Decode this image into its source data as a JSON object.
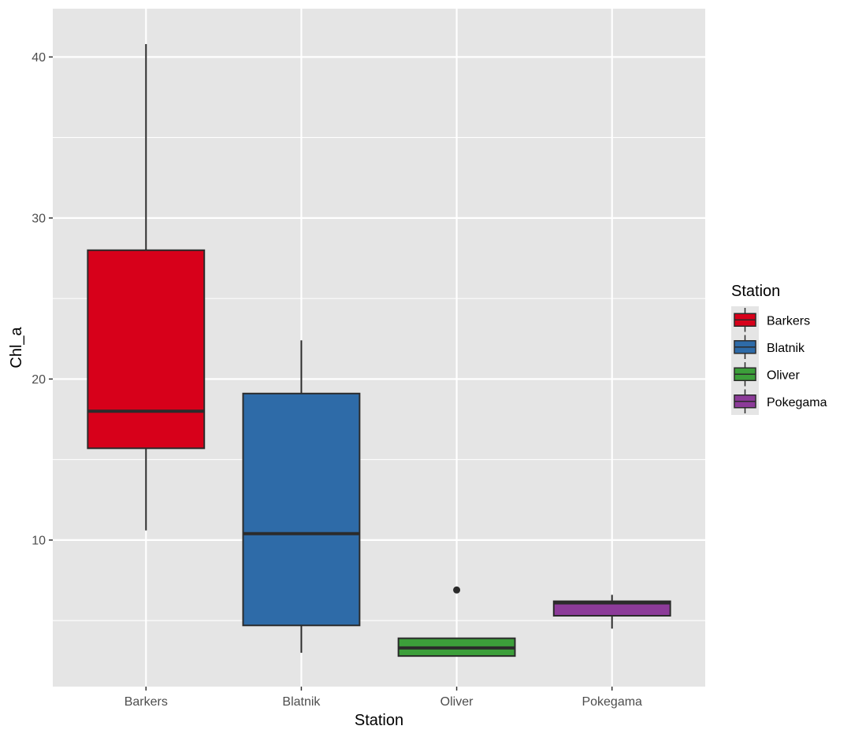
{
  "chart_data": {
    "type": "box",
    "xlabel": "Station",
    "ylabel": "Chl_a",
    "categories": [
      "Barkers",
      "Blatnik",
      "Oliver",
      "Pokegama"
    ],
    "ylim": [
      0.9,
      43.0
    ],
    "y_ticks": [
      10,
      20,
      30,
      40
    ],
    "y_minor_ticks": [
      15,
      25,
      35,
      5
    ],
    "grid": true,
    "legend": {
      "title": "Station",
      "position": "right",
      "entries": [
        "Barkers",
        "Blatnik",
        "Oliver",
        "Pokegama"
      ]
    },
    "colors": {
      "Barkers": "#d7001a",
      "Blatnik": "#2e6ba8",
      "Oliver": "#3c9f3a",
      "Pokegama": "#8c3b99",
      "panel_background": "#e5e5e5",
      "grid": "#ffffff",
      "box_outline": "#2b2b2b"
    },
    "boxes": [
      {
        "category": "Barkers",
        "whisker_low": 10.6,
        "q1": 15.7,
        "median": 18.0,
        "q3": 28.0,
        "whisker_high": 40.8,
        "outliers": []
      },
      {
        "category": "Blatnik",
        "whisker_low": 3.0,
        "q1": 4.7,
        "median": 10.4,
        "q3": 19.1,
        "whisker_high": 22.4,
        "outliers": []
      },
      {
        "category": "Oliver",
        "whisker_low": 2.8,
        "q1": 2.8,
        "median": 3.3,
        "q3": 3.9,
        "whisker_high": 3.9,
        "outliers": [
          6.9
        ]
      },
      {
        "category": "Pokegama",
        "whisker_low": 4.5,
        "q1": 5.3,
        "median": 6.1,
        "q3": 6.2,
        "whisker_high": 6.6,
        "outliers": []
      }
    ]
  }
}
